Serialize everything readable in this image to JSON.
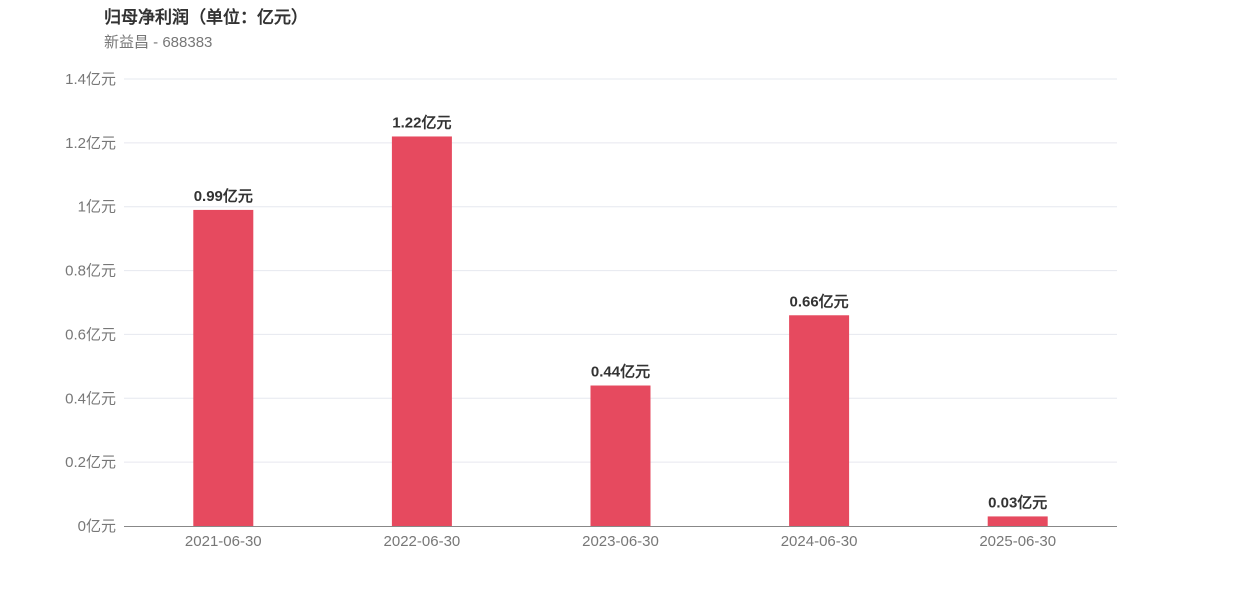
{
  "chart_data": {
    "type": "bar",
    "title": "归母净利润（单位：亿元）",
    "subtitle": "新益昌 - 688383",
    "categories": [
      "2021-06-30",
      "2022-06-30",
      "2023-06-30",
      "2024-06-30",
      "2025-06-30"
    ],
    "values": [
      0.99,
      1.22,
      0.44,
      0.66,
      0.03
    ],
    "data_labels": [
      "0.99亿元",
      "1.22亿元",
      "0.44亿元",
      "0.66亿元",
      "0.03亿元"
    ],
    "yticks": [
      "0亿元",
      "0.2亿元",
      "0.4亿元",
      "0.6亿元",
      "0.8亿元",
      "1亿元",
      "1.2亿元",
      "1.4亿元"
    ],
    "ylim": [
      0,
      1.4
    ],
    "grid": true,
    "bar_color": "#e64a5f"
  }
}
